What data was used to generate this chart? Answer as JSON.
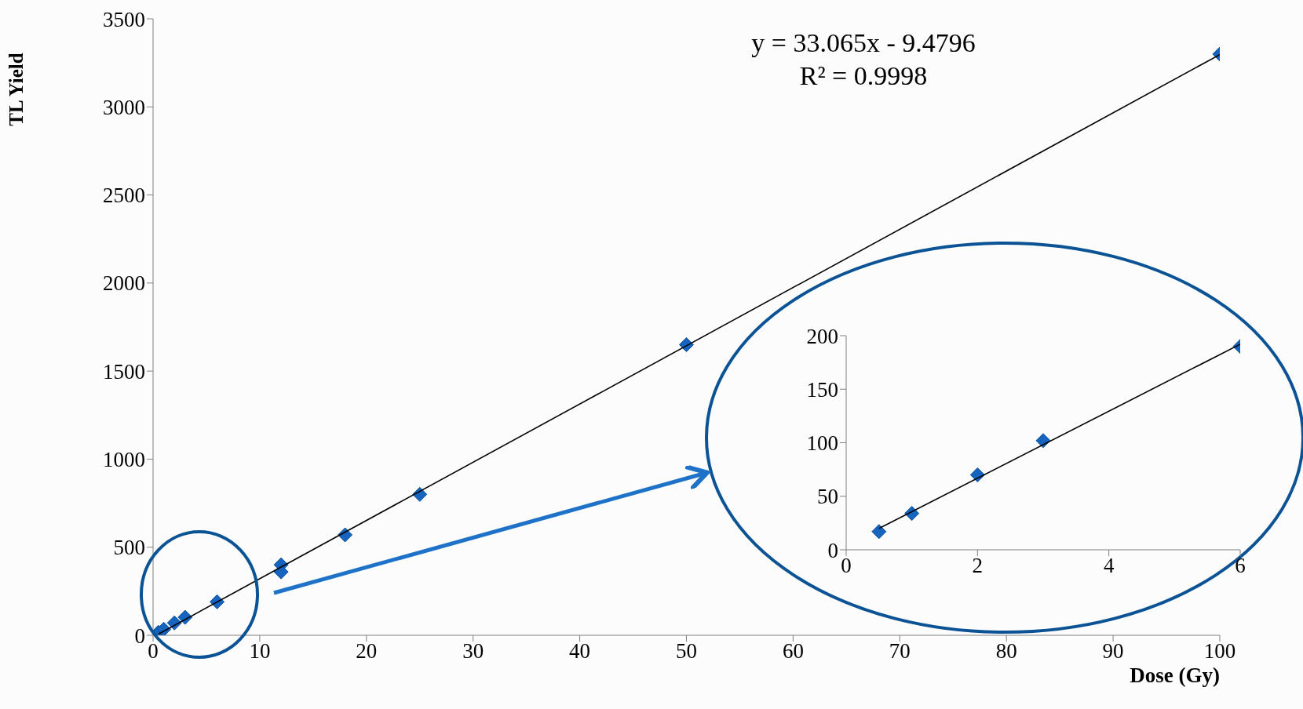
{
  "chart_data": [
    {
      "type": "scatter",
      "xlabel": "Dose (Gy)",
      "ylabel": "TL Yield",
      "annotations": [
        "y = 33.065x - 9.4796",
        "R² = 0.9998"
      ],
      "xlim": [
        0,
        100
      ],
      "xticks": [
        0,
        10,
        20,
        30,
        40,
        50,
        60,
        70,
        80,
        90,
        100
      ],
      "ylim": [
        0,
        3500
      ],
      "yticks": [
        0,
        500,
        1000,
        1500,
        2000,
        2500,
        3000,
        3500
      ],
      "series": [
        {
          "type": "scatter",
          "color": "#1565c0",
          "marker": "diamond",
          "x": [
            0.5,
            1,
            2,
            3,
            6,
            12,
            12,
            18,
            25,
            50,
            100
          ],
          "values": [
            17,
            34,
            70,
            102,
            190,
            400,
            360,
            570,
            800,
            1650,
            3300
          ]
        },
        {
          "type": "line",
          "color": "#000000",
          "marker": "none",
          "x": [
            0.5,
            100
          ],
          "values": [
            7,
            3297
          ]
        }
      ]
    },
    {
      "type": "scatter",
      "xlim": [
        0,
        6
      ],
      "xticks": [
        0,
        2,
        4,
        6
      ],
      "ylim": [
        0,
        200
      ],
      "yticks": [
        0,
        50,
        100,
        150,
        200
      ],
      "series": [
        {
          "type": "scatter",
          "color": "#1565c0",
          "marker": "diamond",
          "x": [
            0.5,
            1,
            2,
            3,
            6
          ],
          "values": [
            17,
            34,
            70,
            102,
            190
          ]
        },
        {
          "type": "line",
          "color": "#000000",
          "marker": "none",
          "x": [
            0.5,
            6
          ],
          "values": [
            20,
            192
          ]
        }
      ]
    }
  ]
}
